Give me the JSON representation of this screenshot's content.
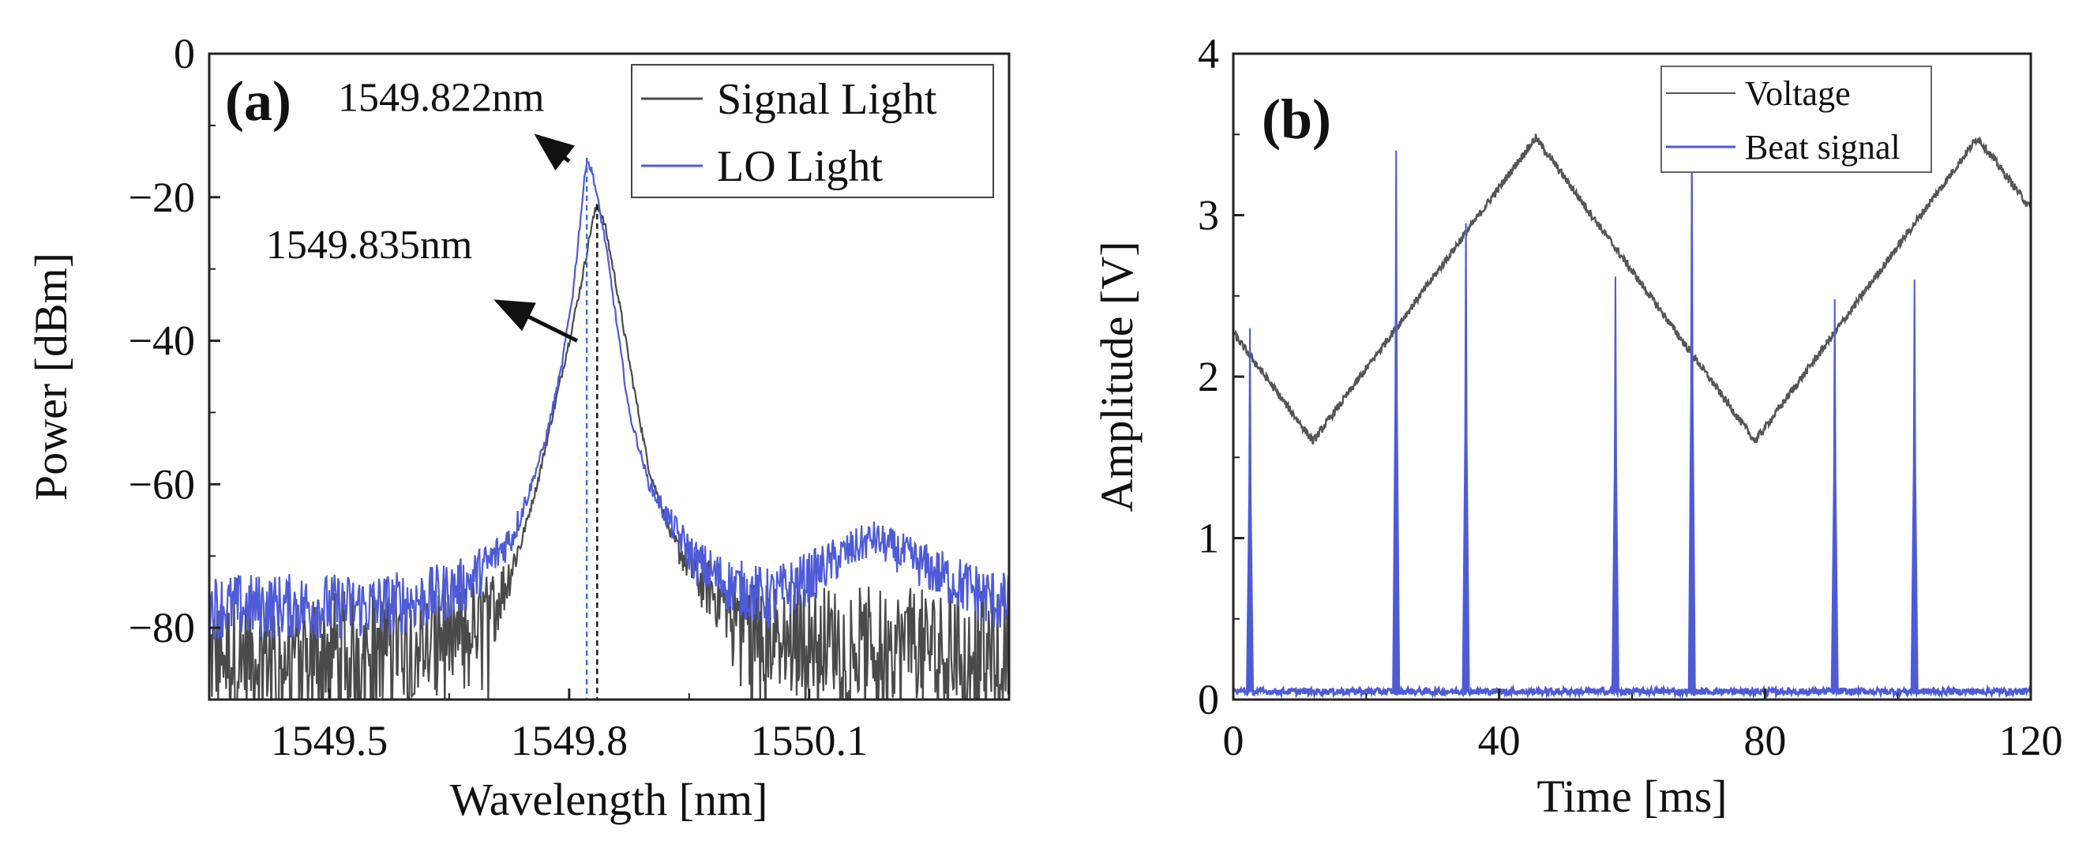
{
  "chart_data": [
    {
      "panel": "(a)",
      "type": "line",
      "xlabel": "Wavelength [nm]",
      "ylabel": "Power [dBm]",
      "xlim": [
        1549.35,
        1550.35
      ],
      "ylim": [
        -90,
        0
      ],
      "xticks": [
        1549.5,
        1549.8,
        1550.1
      ],
      "xtick_labels": [
        "1549.5",
        "1549.8",
        "1550.1"
      ],
      "yticks": [
        0,
        -20,
        -40,
        -60,
        -80
      ],
      "ytick_labels": [
        "0",
        "−20",
        "−40",
        "−60",
        "−80"
      ],
      "legend_position": "top-right",
      "series": [
        {
          "name": "Signal Light",
          "color": "#4a4a4a",
          "noise_floor": -84,
          "noise_span": 8,
          "points": [
            [
              1549.35,
              -84
            ],
            [
              1549.6,
              -82
            ],
            [
              1549.66,
              -81
            ],
            [
              1549.7,
              -78
            ],
            [
              1549.72,
              -74
            ],
            [
              1549.74,
              -68
            ],
            [
              1549.76,
              -60
            ],
            [
              1549.78,
              -50
            ],
            [
              1549.8,
              -40
            ],
            [
              1549.815,
              -32
            ],
            [
              1549.828,
              -24
            ],
            [
              1549.835,
              -21
            ],
            [
              1549.845,
              -24
            ],
            [
              1549.86,
              -33
            ],
            [
              1549.88,
              -46
            ],
            [
              1549.9,
              -58
            ],
            [
              1549.93,
              -68
            ],
            [
              1549.96,
              -73
            ],
            [
              1550.0,
              -77
            ],
            [
              1550.05,
              -81
            ],
            [
              1550.35,
              -83
            ]
          ]
        },
        {
          "name": "LO Light",
          "color": "#4e5bd8",
          "noise_floor": -77,
          "noise_span": 4,
          "points": [
            [
              1549.35,
              -77
            ],
            [
              1549.55,
              -77
            ],
            [
              1549.62,
              -76
            ],
            [
              1549.67,
              -74
            ],
            [
              1549.7,
              -71
            ],
            [
              1549.73,
              -67
            ],
            [
              1549.75,
              -61
            ],
            [
              1549.77,
              -54
            ],
            [
              1549.79,
              -44
            ],
            [
              1549.805,
              -33
            ],
            [
              1549.815,
              -22
            ],
            [
              1549.822,
              -14.5
            ],
            [
              1549.83,
              -17
            ],
            [
              1549.845,
              -26
            ],
            [
              1549.86,
              -38
            ],
            [
              1549.875,
              -50
            ],
            [
              1549.9,
              -60
            ],
            [
              1549.93,
              -66
            ],
            [
              1549.96,
              -71
            ],
            [
              1550.0,
              -74
            ],
            [
              1550.05,
              -76
            ],
            [
              1550.1,
              -73
            ],
            [
              1550.14,
              -70
            ],
            [
              1550.18,
              -67.5
            ],
            [
              1550.22,
              -70
            ],
            [
              1550.27,
              -73
            ],
            [
              1550.35,
              -77
            ]
          ]
        }
      ],
      "reference_lines": [
        {
          "x": 1549.822,
          "color": "#3a6ed8"
        },
        {
          "x": 1549.835,
          "color": "#111111"
        }
      ],
      "annotations": [
        {
          "text": "1549.822nm",
          "x": 1549.64,
          "y": -8,
          "arrow_from": [
            1549.8,
            -15
          ],
          "arrow_to": [
            1549.76,
            -11.5
          ]
        },
        {
          "text": "1549.835nm",
          "x": 1549.55,
          "y": -28.5,
          "arrow_from": [
            1549.81,
            -40
          ],
          "arrow_to": [
            1549.71,
            -34.5
          ]
        }
      ]
    },
    {
      "panel": "(b)",
      "type": "line",
      "xlabel": "Time [ms]",
      "ylabel": "Amplitude [V]",
      "xlim": [
        0,
        120
      ],
      "ylim": [
        0,
        4
      ],
      "xticks": [
        0,
        40,
        80,
        120
      ],
      "xtick_labels": [
        "0",
        "40",
        "80",
        "120"
      ],
      "yticks": [
        0,
        1,
        2,
        3,
        4
      ],
      "ytick_labels": [
        "0",
        "1",
        "2",
        "3",
        "4"
      ],
      "legend_position": "top-right",
      "series": [
        {
          "name": "Voltage",
          "color": "#555555",
          "points": [
            [
              0,
              2.27
            ],
            [
              12,
              1.6
            ],
            [
              45.5,
              3.48
            ],
            [
              78.5,
              1.6
            ],
            [
              112,
              3.48
            ],
            [
              120,
              3.04
            ]
          ]
        },
        {
          "name": "Beat signal",
          "color": "#4e5bd8",
          "baseline": 0.05,
          "peaks": [
            [
              2.5,
              2.3
            ],
            [
              24.5,
              3.4
            ],
            [
              35,
              2.95
            ],
            [
              57.5,
              2.62
            ],
            [
              69,
              3.5
            ],
            [
              90.5,
              2.48
            ],
            [
              102.5,
              2.6
            ]
          ]
        }
      ]
    }
  ]
}
